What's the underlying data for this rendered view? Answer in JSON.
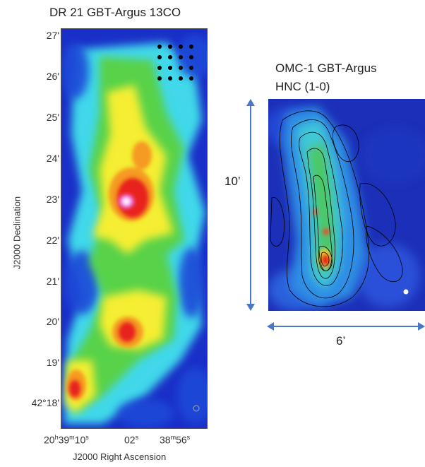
{
  "left_panel": {
    "title": "DR 21 GBT-Argus 13CO",
    "dec_ticks": [
      "27'",
      "26'",
      "25'",
      "24'",
      "23'",
      "22'",
      "21'",
      "20'",
      "19'",
      "42°18'"
    ],
    "ra_ticks": {
      "t1": "20",
      "t1_h": "h",
      "t1_b": "39",
      "t1_m": "m",
      "t1_c": "10",
      "t1_s": "s",
      "t2": "02",
      "t2_s": "s",
      "t3": "38",
      "t3_m": "m",
      "t3_b": "56",
      "t3_s": "s"
    },
    "xlabel": "J2000 Right Ascension",
    "ylabel": "J2000 Declination"
  },
  "right_panel": {
    "title_line1": "OMC-1  GBT-Argus",
    "title_line2": "HNC (1-0)",
    "height_label": "10’",
    "width_label": "6’",
    "arrow_color": "#4a78c8"
  },
  "colors": {
    "map_background": "#1a2fc8",
    "cyan": "#3fd8ea",
    "green": "#58d24a",
    "yellow": "#f5ee30",
    "orange": "#f59a20",
    "red": "#e8201a",
    "magenta": "#f070e8"
  }
}
